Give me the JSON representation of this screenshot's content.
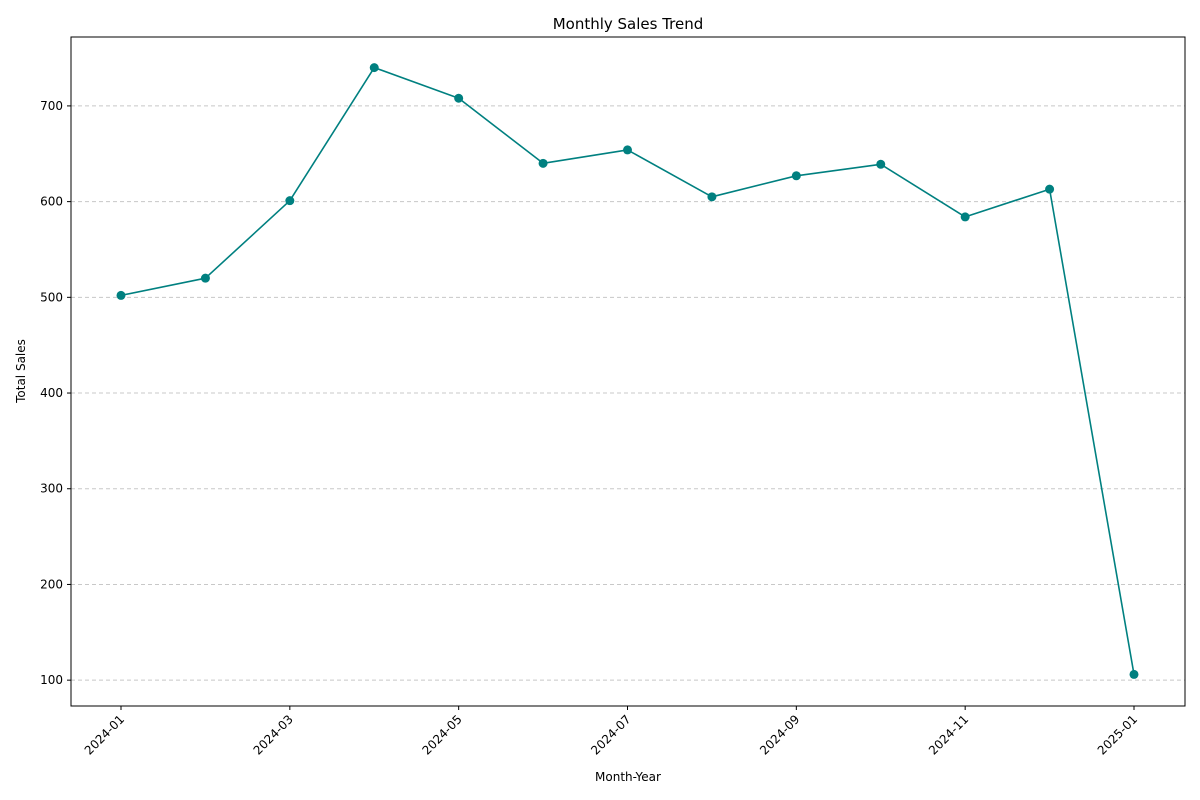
{
  "chart_data": {
    "type": "line",
    "title": "Monthly Sales Trend",
    "xlabel": "Month-Year",
    "ylabel": "Total Sales",
    "x": [
      "2024-01",
      "2024-02",
      "2024-03",
      "2024-04",
      "2024-05",
      "2024-06",
      "2024-07",
      "2024-08",
      "2024-09",
      "2024-10",
      "2024-11",
      "2024-12",
      "2025-01"
    ],
    "x_tick_labels": [
      "2024-01",
      "2024-03",
      "2024-05",
      "2024-07",
      "2024-09",
      "2024-11",
      "2025-01"
    ],
    "y_ticks": [
      100,
      200,
      300,
      400,
      500,
      600,
      700
    ],
    "ylim": [
      73,
      772
    ],
    "series": [
      {
        "color": "#008080",
        "marker": "circle",
        "values": [
          502,
          520,
          601,
          740,
          708,
          640,
          654,
          605,
          627,
          639,
          584,
          613,
          106
        ]
      }
    ],
    "grid": "y-dashed",
    "legend": "none"
  }
}
